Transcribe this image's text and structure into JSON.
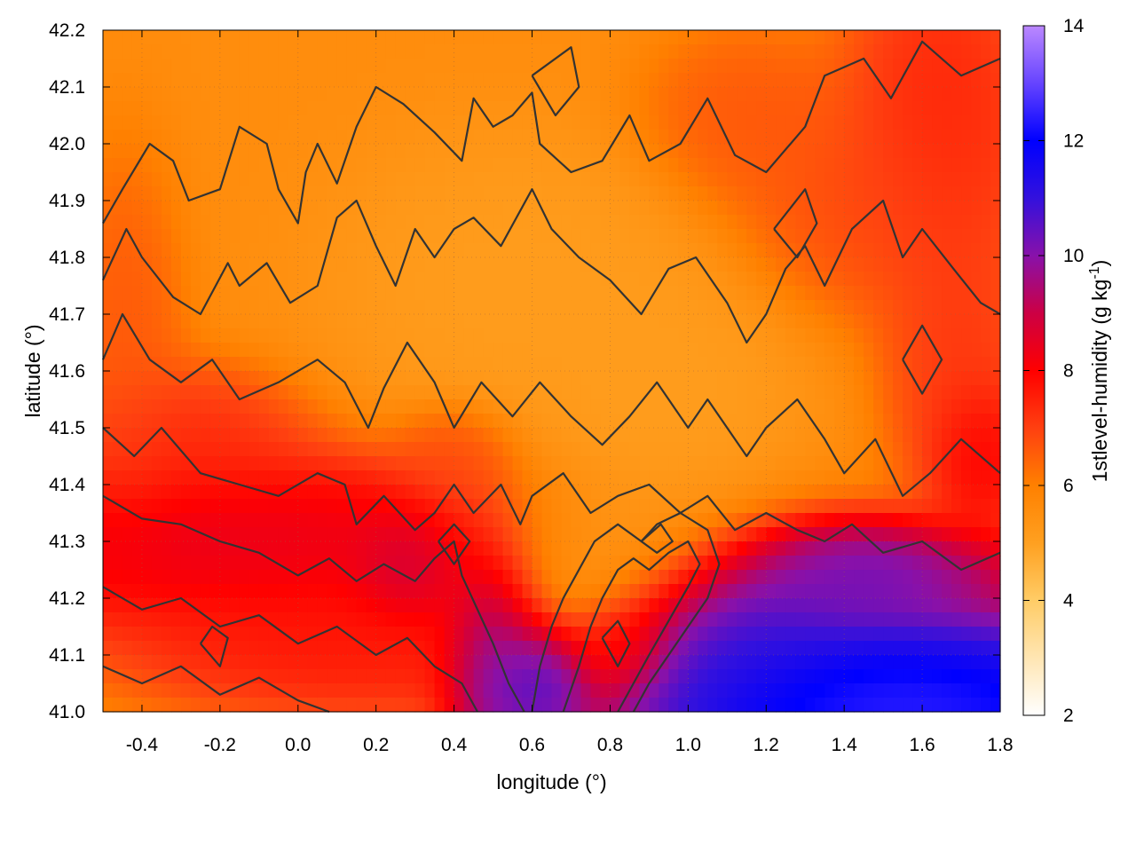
{
  "chart_data": {
    "type": "heatmap",
    "xlabel": "longitude (°)",
    "ylabel": "latitude (°)",
    "colorbar_label": "1stlevel-humidity (g kg",
    "colorbar_label_sup": "-1",
    "colorbar_label_end": ")",
    "xlim": [
      -0.5,
      1.8
    ],
    "ylim": [
      41.0,
      42.2
    ],
    "clim": [
      2,
      14
    ],
    "x_ticks": [
      {
        "v": -0.4,
        "label": "-0.4"
      },
      {
        "v": -0.2,
        "label": "-0.2"
      },
      {
        "v": 0.0,
        "label": "0.0"
      },
      {
        "v": 0.2,
        "label": "0.2"
      },
      {
        "v": 0.4,
        "label": "0.4"
      },
      {
        "v": 0.6,
        "label": "0.6"
      },
      {
        "v": 0.8,
        "label": "0.8"
      },
      {
        "v": 1.0,
        "label": "1.0"
      },
      {
        "v": 1.2,
        "label": "1.2"
      },
      {
        "v": 1.4,
        "label": "1.4"
      },
      {
        "v": 1.6,
        "label": "1.6"
      },
      {
        "v": 1.8,
        "label": "1.8"
      }
    ],
    "y_ticks": [
      {
        "v": 41.0,
        "label": "41.0"
      },
      {
        "v": 41.1,
        "label": "41.1"
      },
      {
        "v": 41.2,
        "label": "41.2"
      },
      {
        "v": 41.3,
        "label": "41.3"
      },
      {
        "v": 41.4,
        "label": "41.4"
      },
      {
        "v": 41.5,
        "label": "41.5"
      },
      {
        "v": 41.6,
        "label": "41.6"
      },
      {
        "v": 41.7,
        "label": "41.7"
      },
      {
        "v": 41.8,
        "label": "41.8"
      },
      {
        "v": 41.9,
        "label": "41.9"
      },
      {
        "v": 42.0,
        "label": "42.0"
      },
      {
        "v": 42.1,
        "label": "42.1"
      },
      {
        "v": 42.2,
        "label": "42.2"
      }
    ],
    "colorbar_ticks": [
      {
        "v": 2,
        "label": "2"
      },
      {
        "v": 4,
        "label": "4"
      },
      {
        "v": 6,
        "label": "6"
      },
      {
        "v": 8,
        "label": "8"
      },
      {
        "v": 10,
        "label": "10"
      },
      {
        "v": 12,
        "label": "12"
      },
      {
        "v": 14,
        "label": "14"
      }
    ],
    "colormap": [
      {
        "v": 2,
        "color": "#ffffff"
      },
      {
        "v": 4,
        "color": "#ffcc66"
      },
      {
        "v": 5,
        "color": "#ffa020"
      },
      {
        "v": 6,
        "color": "#ff8000"
      },
      {
        "v": 7,
        "color": "#ff4010"
      },
      {
        "v": 8,
        "color": "#ff0000"
      },
      {
        "v": 9,
        "color": "#cc0044"
      },
      {
        "v": 10,
        "color": "#8811aa"
      },
      {
        "v": 11,
        "color": "#3311dd"
      },
      {
        "v": 12,
        "color": "#0000ff"
      },
      {
        "v": 13,
        "color": "#6644ff"
      },
      {
        "v": 14,
        "color": "#bb88ff"
      }
    ],
    "humidity_field": {
      "background": 5.6,
      "blobs": [
        {
          "x": 0.75,
          "y": 41.28,
          "rx": 0.3,
          "ry": 0.13,
          "v": 4.3
        },
        {
          "x": 0.95,
          "y": 41.55,
          "rx": 0.25,
          "ry": 0.18,
          "v": 5.0
        },
        {
          "x": 0.55,
          "y": 41.75,
          "rx": 0.35,
          "ry": 0.2,
          "v": 5.0
        },
        {
          "x": -0.2,
          "y": 41.3,
          "rx": 0.9,
          "ry": 0.12,
          "v": 9.0
        },
        {
          "x": 0.1,
          "y": 41.12,
          "rx": 0.45,
          "ry": 0.1,
          "v": 8.0
        },
        {
          "x": -0.3,
          "y": 41.48,
          "rx": 0.25,
          "ry": 0.1,
          "v": 7.6
        },
        {
          "x": 0.3,
          "y": 41.25,
          "rx": 0.12,
          "ry": 0.08,
          "v": 9.6
        },
        {
          "x": 0.5,
          "y": 41.12,
          "rx": 0.1,
          "ry": 0.15,
          "v": 11.4
        },
        {
          "x": 0.62,
          "y": 41.06,
          "rx": 0.1,
          "ry": 0.08,
          "v": 11.6
        },
        {
          "x": 1.1,
          "y": 41.15,
          "rx": 0.22,
          "ry": 0.1,
          "v": 11.6
        },
        {
          "x": 1.45,
          "y": 41.25,
          "rx": 0.3,
          "ry": 0.07,
          "v": 11.0
        },
        {
          "x": 1.55,
          "y": 41.0,
          "rx": 0.6,
          "ry": 0.15,
          "v": 14.0
        },
        {
          "x": 1.65,
          "y": 42.05,
          "rx": 0.2,
          "ry": 0.25,
          "v": 7.8
        },
        {
          "x": 1.45,
          "y": 41.9,
          "rx": 0.25,
          "ry": 0.15,
          "v": 7.0
        },
        {
          "x": 1.7,
          "y": 41.6,
          "rx": 0.15,
          "ry": 0.2,
          "v": 7.4
        },
        {
          "x": 1.75,
          "y": 41.45,
          "rx": 0.1,
          "ry": 0.1,
          "v": 8.6
        },
        {
          "x": 1.15,
          "y": 42.05,
          "rx": 0.2,
          "ry": 0.12,
          "v": 6.8
        },
        {
          "x": -0.45,
          "y": 41.65,
          "rx": 0.12,
          "ry": 0.25,
          "v": 6.8
        },
        {
          "x": 0.82,
          "y": 41.12,
          "rx": 0.1,
          "ry": 0.06,
          "v": 7.8
        },
        {
          "x": 0.4,
          "y": 41.45,
          "rx": 0.12,
          "ry": 0.07,
          "v": 7.0
        }
      ]
    },
    "contours": [
      [
        [
          -0.5,
          41.86
        ],
        [
          -0.45,
          41.92
        ],
        [
          -0.38,
          42.0
        ],
        [
          -0.32,
          41.97
        ],
        [
          -0.28,
          41.9
        ],
        [
          -0.2,
          41.92
        ],
        [
          -0.15,
          42.03
        ],
        [
          -0.08,
          42.0
        ],
        [
          -0.05,
          41.92
        ],
        [
          0.0,
          41.86
        ],
        [
          0.02,
          41.95
        ],
        [
          0.05,
          42.0
        ],
        [
          0.1,
          41.93
        ],
        [
          0.15,
          42.03
        ],
        [
          0.2,
          42.1
        ],
        [
          0.27,
          42.07
        ],
        [
          0.35,
          42.02
        ],
        [
          0.42,
          41.97
        ],
        [
          0.45,
          42.08
        ],
        [
          0.5,
          42.03
        ],
        [
          0.55,
          42.05
        ],
        [
          0.6,
          42.09
        ],
        [
          0.62,
          42.0
        ],
        [
          0.7,
          41.95
        ],
        [
          0.78,
          41.97
        ],
        [
          0.85,
          42.05
        ],
        [
          0.9,
          41.97
        ],
        [
          0.98,
          42.0
        ],
        [
          1.05,
          42.08
        ],
        [
          1.12,
          41.98
        ],
        [
          1.2,
          41.95
        ],
        [
          1.3,
          42.03
        ],
        [
          1.35,
          42.12
        ],
        [
          1.45,
          42.15
        ],
        [
          1.52,
          42.08
        ],
        [
          1.6,
          42.18
        ],
        [
          1.7,
          42.12
        ],
        [
          1.8,
          42.15
        ]
      ],
      [
        [
          -0.5,
          41.76
        ],
        [
          -0.44,
          41.85
        ],
        [
          -0.4,
          41.8
        ],
        [
          -0.32,
          41.73
        ],
        [
          -0.25,
          41.7
        ],
        [
          -0.18,
          41.79
        ],
        [
          -0.15,
          41.75
        ],
        [
          -0.08,
          41.79
        ],
        [
          -0.02,
          41.72
        ],
        [
          0.05,
          41.75
        ],
        [
          0.1,
          41.87
        ],
        [
          0.15,
          41.9
        ],
        [
          0.2,
          41.82
        ],
        [
          0.25,
          41.75
        ],
        [
          0.3,
          41.85
        ],
        [
          0.35,
          41.8
        ],
        [
          0.4,
          41.85
        ],
        [
          0.45,
          41.87
        ],
        [
          0.52,
          41.82
        ],
        [
          0.6,
          41.92
        ],
        [
          0.65,
          41.85
        ],
        [
          0.72,
          41.8
        ],
        [
          0.8,
          41.76
        ],
        [
          0.88,
          41.7
        ],
        [
          0.95,
          41.78
        ],
        [
          1.02,
          41.8
        ],
        [
          1.1,
          41.72
        ],
        [
          1.15,
          41.65
        ],
        [
          1.2,
          41.7
        ],
        [
          1.25,
          41.78
        ],
        [
          1.3,
          41.82
        ],
        [
          1.35,
          41.75
        ],
        [
          1.42,
          41.85
        ],
        [
          1.5,
          41.9
        ],
        [
          1.55,
          41.8
        ],
        [
          1.6,
          41.85
        ],
        [
          1.68,
          41.78
        ],
        [
          1.75,
          41.72
        ],
        [
          1.8,
          41.7
        ]
      ],
      [
        [
          -0.5,
          41.62
        ],
        [
          -0.45,
          41.7
        ],
        [
          -0.38,
          41.62
        ],
        [
          -0.3,
          41.58
        ],
        [
          -0.22,
          41.62
        ],
        [
          -0.15,
          41.55
        ],
        [
          -0.05,
          41.58
        ],
        [
          0.05,
          41.62
        ],
        [
          0.12,
          41.58
        ],
        [
          0.18,
          41.5
        ],
        [
          0.22,
          41.57
        ],
        [
          0.28,
          41.65
        ],
        [
          0.35,
          41.58
        ],
        [
          0.4,
          41.5
        ],
        [
          0.47,
          41.58
        ],
        [
          0.55,
          41.52
        ],
        [
          0.62,
          41.58
        ],
        [
          0.7,
          41.52
        ],
        [
          0.78,
          41.47
        ],
        [
          0.85,
          41.52
        ],
        [
          0.92,
          41.58
        ],
        [
          1.0,
          41.5
        ],
        [
          1.05,
          41.55
        ],
        [
          1.1,
          41.5
        ],
        [
          1.15,
          41.45
        ],
        [
          1.2,
          41.5
        ],
        [
          1.28,
          41.55
        ],
        [
          1.35,
          41.48
        ],
        [
          1.4,
          41.42
        ],
        [
          1.48,
          41.48
        ],
        [
          1.55,
          41.38
        ],
        [
          1.62,
          41.42
        ],
        [
          1.7,
          41.48
        ],
        [
          1.8,
          41.42
        ]
      ],
      [
        [
          -0.5,
          41.5
        ],
        [
          -0.42,
          41.45
        ],
        [
          -0.35,
          41.5
        ],
        [
          -0.25,
          41.42
        ],
        [
          -0.15,
          41.4
        ],
        [
          -0.05,
          41.38
        ],
        [
          0.05,
          41.42
        ],
        [
          0.12,
          41.4
        ],
        [
          0.15,
          41.33
        ],
        [
          0.22,
          41.38
        ],
        [
          0.3,
          41.32
        ],
        [
          0.35,
          41.35
        ],
        [
          0.4,
          41.4
        ],
        [
          0.45,
          41.35
        ],
        [
          0.52,
          41.4
        ],
        [
          0.57,
          41.33
        ],
        [
          0.6,
          41.38
        ],
        [
          0.68,
          41.42
        ],
        [
          0.75,
          41.35
        ],
        [
          0.82,
          41.38
        ],
        [
          0.9,
          41.4
        ],
        [
          0.98,
          41.35
        ],
        [
          1.05,
          41.38
        ],
        [
          1.12,
          41.32
        ],
        [
          1.2,
          41.35
        ],
        [
          1.28,
          41.32
        ],
        [
          1.35,
          41.3
        ],
        [
          1.42,
          41.33
        ],
        [
          1.5,
          41.28
        ],
        [
          1.6,
          41.3
        ],
        [
          1.7,
          41.25
        ],
        [
          1.8,
          41.28
        ]
      ],
      [
        [
          -0.5,
          41.38
        ],
        [
          -0.4,
          41.34
        ],
        [
          -0.3,
          41.33
        ],
        [
          -0.2,
          41.3
        ],
        [
          -0.1,
          41.28
        ],
        [
          0.0,
          41.24
        ],
        [
          0.08,
          41.27
        ],
        [
          0.15,
          41.23
        ],
        [
          0.22,
          41.26
        ],
        [
          0.3,
          41.23
        ],
        [
          0.35,
          41.27
        ],
        [
          0.4,
          41.3
        ],
        [
          0.42,
          41.24
        ],
        [
          0.46,
          41.18
        ],
        [
          0.5,
          41.12
        ],
        [
          0.54,
          41.05
        ],
        [
          0.58,
          41.0
        ]
      ],
      [
        [
          -0.5,
          41.22
        ],
        [
          -0.4,
          41.18
        ],
        [
          -0.3,
          41.2
        ],
        [
          -0.2,
          41.15
        ],
        [
          -0.1,
          41.17
        ],
        [
          0.0,
          41.12
        ],
        [
          0.1,
          41.15
        ],
        [
          0.2,
          41.1
        ],
        [
          0.28,
          41.13
        ],
        [
          0.35,
          41.08
        ],
        [
          0.42,
          41.05
        ],
        [
          0.46,
          41.0
        ]
      ],
      [
        [
          -0.5,
          41.08
        ],
        [
          -0.4,
          41.05
        ],
        [
          -0.3,
          41.08
        ],
        [
          -0.2,
          41.03
        ],
        [
          -0.1,
          41.06
        ],
        [
          0.0,
          41.02
        ],
        [
          0.08,
          41.0
        ]
      ],
      [
        [
          0.6,
          41.0
        ],
        [
          0.62,
          41.08
        ],
        [
          0.65,
          41.15
        ],
        [
          0.68,
          41.2
        ],
        [
          0.72,
          41.25
        ],
        [
          0.76,
          41.3
        ],
        [
          0.82,
          41.33
        ],
        [
          0.88,
          41.3
        ],
        [
          0.92,
          41.33
        ],
        [
          0.98,
          41.35
        ],
        [
          1.05,
          41.32
        ],
        [
          1.08,
          41.26
        ],
        [
          1.05,
          41.2
        ],
        [
          1.0,
          41.15
        ],
        [
          0.95,
          41.1
        ],
        [
          0.9,
          41.05
        ],
        [
          0.86,
          41.0
        ]
      ],
      [
        [
          0.68,
          41.0
        ],
        [
          0.72,
          41.08
        ],
        [
          0.75,
          41.15
        ],
        [
          0.78,
          41.2
        ],
        [
          0.82,
          41.25
        ],
        [
          0.86,
          41.27
        ],
        [
          0.9,
          41.25
        ],
        [
          0.95,
          41.28
        ],
        [
          1.0,
          41.3
        ],
        [
          1.03,
          41.26
        ],
        [
          1.0,
          41.22
        ],
        [
          0.95,
          41.16
        ],
        [
          0.9,
          41.1
        ],
        [
          0.86,
          41.05
        ],
        [
          0.82,
          41.0
        ]
      ],
      [
        [
          0.88,
          41.3
        ],
        [
          0.92,
          41.28
        ],
        [
          0.96,
          41.3
        ],
        [
          0.93,
          41.33
        ],
        [
          0.88,
          41.3
        ]
      ],
      [
        [
          0.78,
          41.13
        ],
        [
          0.82,
          41.08
        ],
        [
          0.85,
          41.12
        ],
        [
          0.82,
          41.16
        ],
        [
          0.78,
          41.13
        ]
      ],
      [
        [
          0.36,
          41.3
        ],
        [
          0.4,
          41.26
        ],
        [
          0.44,
          41.3
        ],
        [
          0.4,
          41.33
        ],
        [
          0.36,
          41.3
        ]
      ],
      [
        [
          -0.25,
          41.12
        ],
        [
          -0.2,
          41.08
        ],
        [
          -0.18,
          41.13
        ],
        [
          -0.22,
          41.15
        ],
        [
          -0.25,
          41.12
        ]
      ],
      [
        [
          1.22,
          41.85
        ],
        [
          1.28,
          41.8
        ],
        [
          1.33,
          41.86
        ],
        [
          1.3,
          41.92
        ],
        [
          1.22,
          41.85
        ]
      ],
      [
        [
          1.55,
          41.62
        ],
        [
          1.6,
          41.56
        ],
        [
          1.65,
          41.62
        ],
        [
          1.6,
          41.68
        ],
        [
          1.55,
          41.62
        ]
      ],
      [
        [
          0.6,
          42.12
        ],
        [
          0.66,
          42.05
        ],
        [
          0.72,
          42.1
        ],
        [
          0.7,
          42.17
        ],
        [
          0.6,
          42.12
        ]
      ]
    ]
  }
}
